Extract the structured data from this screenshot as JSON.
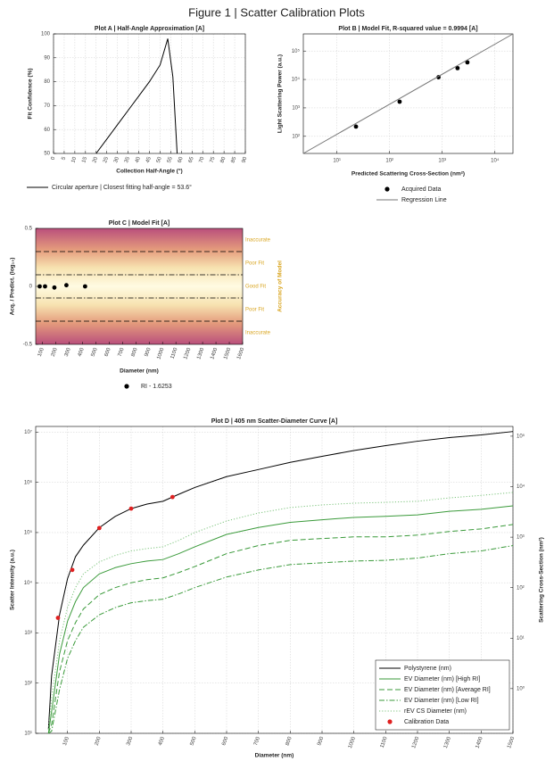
{
  "title": "Figure 1 | Scatter Calibration Plots",
  "chart_data": [
    {
      "type": "line",
      "title": "Plot A | Half-Angle Approximation [A]",
      "xlabel": "Collection Half-Angle (°)",
      "ylabel": "Fit Confidence (%)",
      "x": [
        20,
        25,
        30,
        35,
        40,
        45,
        50,
        53.6,
        56,
        58
      ],
      "series": [
        {
          "name": "Circular aperture | Closest fitting half-angle = 53.6°",
          "color": "#000000",
          "style": "solid",
          "values": [
            50,
            56,
            62,
            68,
            74,
            80,
            87,
            98,
            82,
            50
          ]
        }
      ],
      "xlim": [
        0,
        90
      ],
      "xticks": [
        0,
        5,
        10,
        15,
        20,
        25,
        30,
        35,
        40,
        45,
        50,
        55,
        60,
        65,
        70,
        75,
        80,
        85,
        90
      ],
      "ylim": [
        50,
        100
      ],
      "yticks": [
        50,
        60,
        70,
        80,
        90,
        100
      ],
      "grid": true,
      "legend": "below"
    },
    {
      "type": "scatter",
      "title": "Plot B | Model Fit, R-squared value = 0.9994 [A]",
      "xlabel": "Predicted Scattering Cross-Section (nm²)",
      "ylabel": "Light Scattering Power (a.u.)",
      "xscale": "log",
      "yscale": "log",
      "series": [
        {
          "name": "Acquired Data",
          "color": "#000000",
          "style": "marker",
          "x": [
            23,
            155,
            850,
            1950,
            3000
          ],
          "values": [
            220,
            1650,
            12000,
            25000,
            40000
          ]
        },
        {
          "name": "Regression Line",
          "color": "#777777",
          "style": "solid",
          "x": [
            2.3,
            22000
          ],
          "values": [
            25,
            400000
          ]
        }
      ],
      "xlim": [
        2.3,
        22000
      ],
      "xticks": [
        {
          "value": 10,
          "label": "10¹"
        },
        {
          "value": 100,
          "label": "10²"
        },
        {
          "value": 1000,
          "label": "10³"
        },
        {
          "value": 10000,
          "label": "10⁴"
        }
      ],
      "ylim": [
        25,
        400000
      ],
      "yticks": [
        {
          "value": 100,
          "label": "10²"
        },
        {
          "value": 1000,
          "label": "10³"
        },
        {
          "value": 10000,
          "label": "10⁴"
        },
        {
          "value": 100000,
          "label": "10⁵"
        }
      ],
      "grid": true,
      "legend": "below"
    },
    {
      "type": "scatter",
      "title": "Plot C | Model Fit [A]",
      "xlabel": "Diameter (nm)",
      "ylabel": "Acq. / Predict. (log₁₀)",
      "zone_axis_label": "Accuracy of Model",
      "series": [
        {
          "name": "RI - 1.6253",
          "color": "#000000",
          "style": "marker",
          "x": [
            80,
            120,
            190,
            280,
            420
          ],
          "values": [
            0,
            0,
            -0.01,
            0.01,
            0
          ]
        }
      ],
      "thresholds": [
        0.3,
        0.1,
        -0.1,
        -0.3
      ],
      "threshold_styles": [
        "dashed",
        "dashdot",
        "dashdot",
        "dashed"
      ],
      "zones": [
        "Inaccurate",
        "Poor Fit",
        "Good Fit",
        "Poor Fit",
        "Inaccurate"
      ],
      "zone_color": "#d9a520",
      "xlim": [
        50,
        1600
      ],
      "xticks": [
        100,
        200,
        300,
        400,
        500,
        600,
        700,
        800,
        900,
        1000,
        1100,
        1200,
        1300,
        1400,
        1500,
        1600
      ],
      "ylim": [
        -0.5,
        0.5
      ],
      "yticks": [
        -0.5,
        0,
        0.5
      ],
      "grid": false,
      "legend": "below"
    },
    {
      "type": "line",
      "title": "Plot D | 405 nm Scatter-Diameter Curve [A]",
      "xlabel": "Diameter (nm)",
      "ylabel": "Scatter Intensity (a.u.)",
      "y2label": "Scattering Cross-Section (nm²)",
      "yscale": "log",
      "y2scale": "log",
      "x": [
        40,
        50,
        75,
        100,
        125,
        150,
        200,
        250,
        300,
        350,
        400,
        450,
        500,
        600,
        700,
        800,
        900,
        1000,
        1100,
        1200,
        1300,
        1400,
        1500
      ],
      "series": [
        {
          "name": "Polystyrene (nm)",
          "color": "#000000",
          "style": "solid",
          "values": [
            12,
            140,
            2300,
            12000,
            33000,
            56000,
            125000,
            210000,
            300000,
            370000,
            420000,
            580000,
            790000,
            1300000,
            1800000,
            2500000,
            3300000,
            4300000,
            5400000,
            6600000,
            7800000,
            8800000,
            10300000
          ]
        },
        {
          "name": "EV Diameter (nm) [High RI]",
          "color": "#3a9a3a",
          "style": "solid",
          "values": [
            10,
            27,
            380,
            1700,
            4200,
            8000,
            15000,
            20000,
            24000,
            27000,
            29000,
            38000,
            52000,
            92000,
            126000,
            160000,
            180000,
            200000,
            210000,
            225000,
            265000,
            290000,
            340000
          ]
        },
        {
          "name": "EV Diameter (nm) [Average RI]",
          "color": "#3a9a3a",
          "style": "dashed",
          "values": [
            10,
            15,
            170,
            700,
            1600,
            3000,
            5800,
            8000,
            10000,
            11500,
            12500,
            16000,
            21000,
            38000,
            55000,
            70000,
            76000,
            82000,
            82000,
            89000,
            105000,
            118000,
            145000
          ]
        },
        {
          "name": "EV Diameter (nm) [Low RI]",
          "color": "#3a9a3a",
          "style": "dashdot",
          "values": [
            10,
            11,
            75,
            310,
            700,
            1300,
            2300,
            3200,
            4000,
            4400,
            4700,
            6000,
            8000,
            13000,
            18000,
            23000,
            25000,
            27000,
            28000,
            31000,
            38000,
            43000,
            55000
          ]
        },
        {
          "name": "rEV CS Diameter (nm)",
          "color": "#7cc47c",
          "style": "dotted",
          "values": [
            12,
            50,
            700,
            3200,
            8000,
            15000,
            26000,
            35000,
            43000,
            48000,
            52000,
            70000,
            100000,
            170000,
            245000,
            315000,
            355000,
            385000,
            400000,
            420000,
            490000,
            550000,
            630000
          ]
        },
        {
          "name": "Calibration Data",
          "color": "#e02020",
          "style": "marker",
          "x": [
            70,
            115,
            200,
            300,
            430
          ],
          "values": [
            2000,
            18000,
            123000,
            300000,
            510000
          ]
        }
      ],
      "xlim": [
        0,
        1500
      ],
      "xticks": [
        100,
        200,
        300,
        400,
        500,
        600,
        700,
        800,
        900,
        1000,
        1100,
        1200,
        1300,
        1400,
        1500
      ],
      "ylim": [
        10,
        13000000
      ],
      "yticks": [
        {
          "value": 10,
          "label": "10¹"
        },
        {
          "value": 100,
          "label": "10²"
        },
        {
          "value": 1000,
          "label": "10³"
        },
        {
          "value": 10000,
          "label": "10⁴"
        },
        {
          "value": 100000,
          "label": "10⁵"
        },
        {
          "value": 1000000,
          "label": "10⁶"
        },
        {
          "value": 10000000,
          "label": "10⁷"
        }
      ],
      "y2lim": [
        0.13,
        156000
      ],
      "y2ticks": [
        {
          "value": 1,
          "label": "10⁰"
        },
        {
          "value": 10,
          "label": "10¹"
        },
        {
          "value": 100,
          "label": "10²"
        },
        {
          "value": 1000,
          "label": "10³"
        },
        {
          "value": 10000,
          "label": "10⁴"
        },
        {
          "value": 100000,
          "label": "10⁵"
        }
      ],
      "grid": true,
      "legend": "lower right"
    }
  ]
}
